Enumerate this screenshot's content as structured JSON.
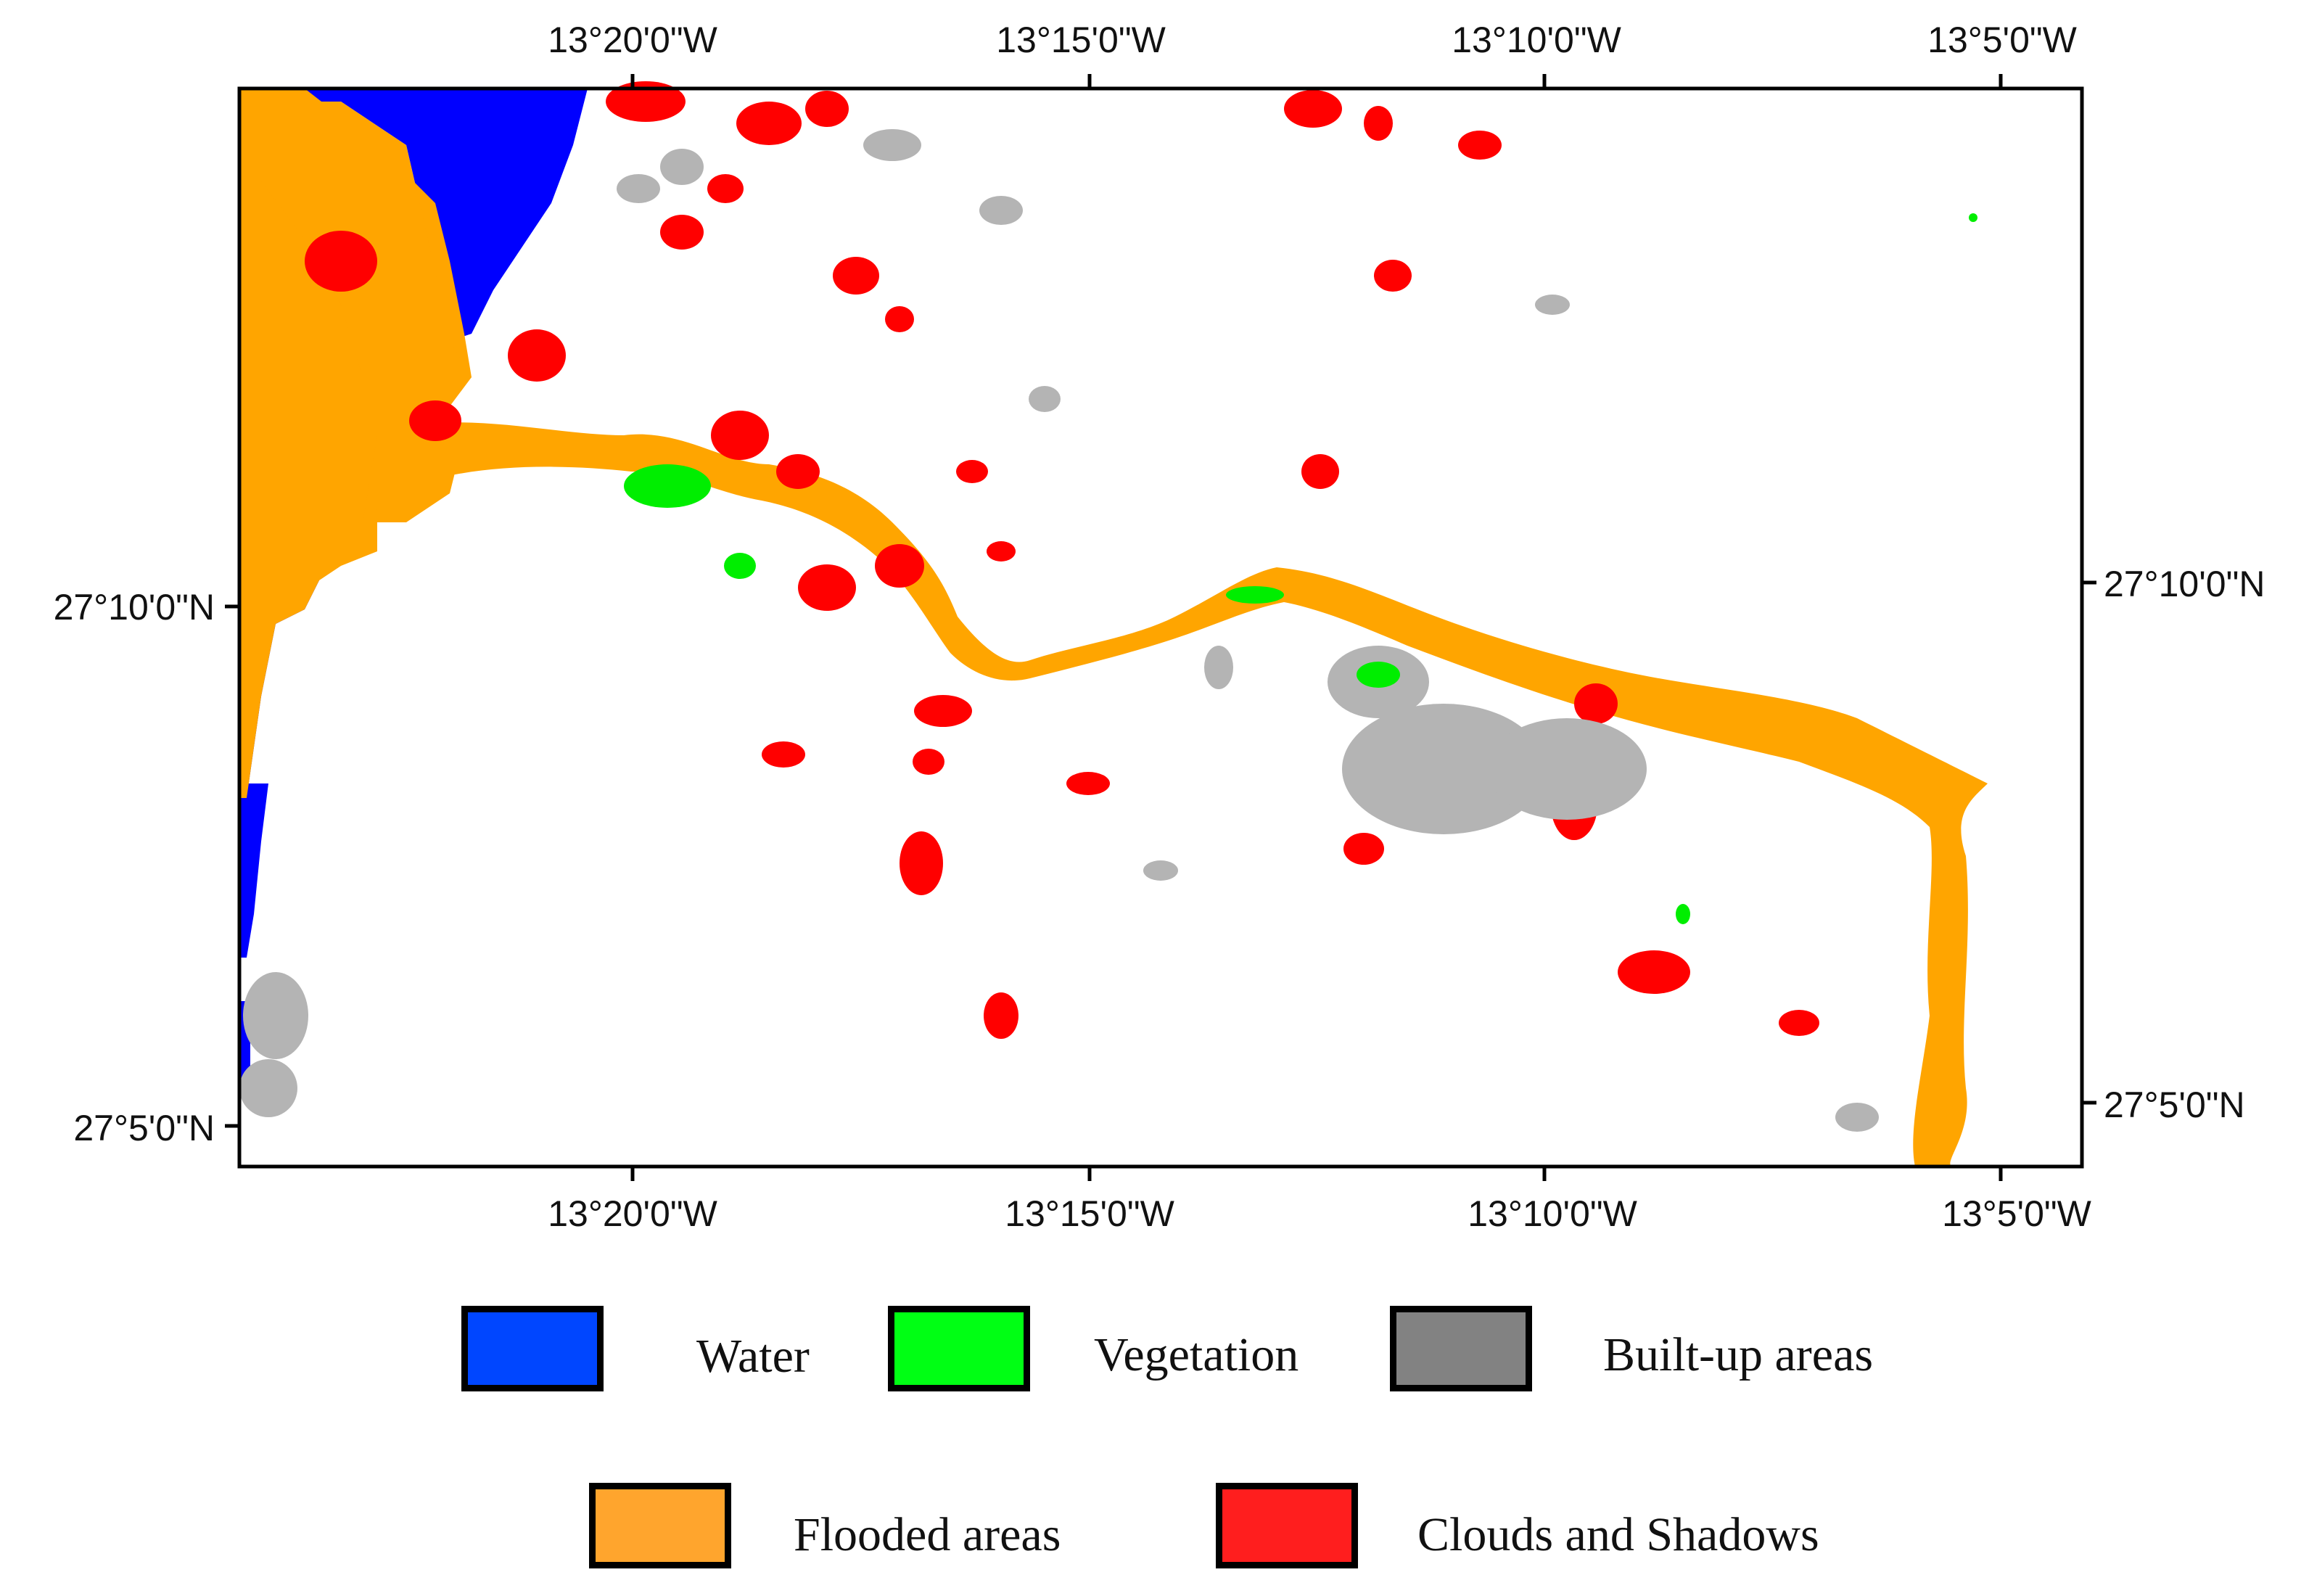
{
  "map": {
    "top_labels": [
      "13°20'0\"W",
      "13°15'0\"W",
      "13°10'0\"W",
      "13°5'0\"W"
    ],
    "bottom_labels": [
      "13°20'0\"W",
      "13°15'0\"W",
      "13°10'0\"W",
      "13°5'0\"W"
    ],
    "left_labels": [
      "27°10'0\"N",
      "27°5'0\"N"
    ],
    "right_labels": [
      "27°10'0\"N",
      "27°5'0\"N"
    ]
  },
  "legend": {
    "items": [
      {
        "label": "Water",
        "color": "#0046ff"
      },
      {
        "label": "Vegetation",
        "color": "#00ff14"
      },
      {
        "label": "Built-up areas",
        "color": "#828282"
      },
      {
        "label": "Flooded areas",
        "color": "#ffa52d"
      },
      {
        "label": "Clouds and Shadows",
        "color": "#ff1e1e"
      }
    ]
  },
  "colors": {
    "water": "#0000ff",
    "vegetation": "#00ee00",
    "built_up": "#b4b4b4",
    "flooded": "#ffa500",
    "clouds": "#ff0000"
  }
}
